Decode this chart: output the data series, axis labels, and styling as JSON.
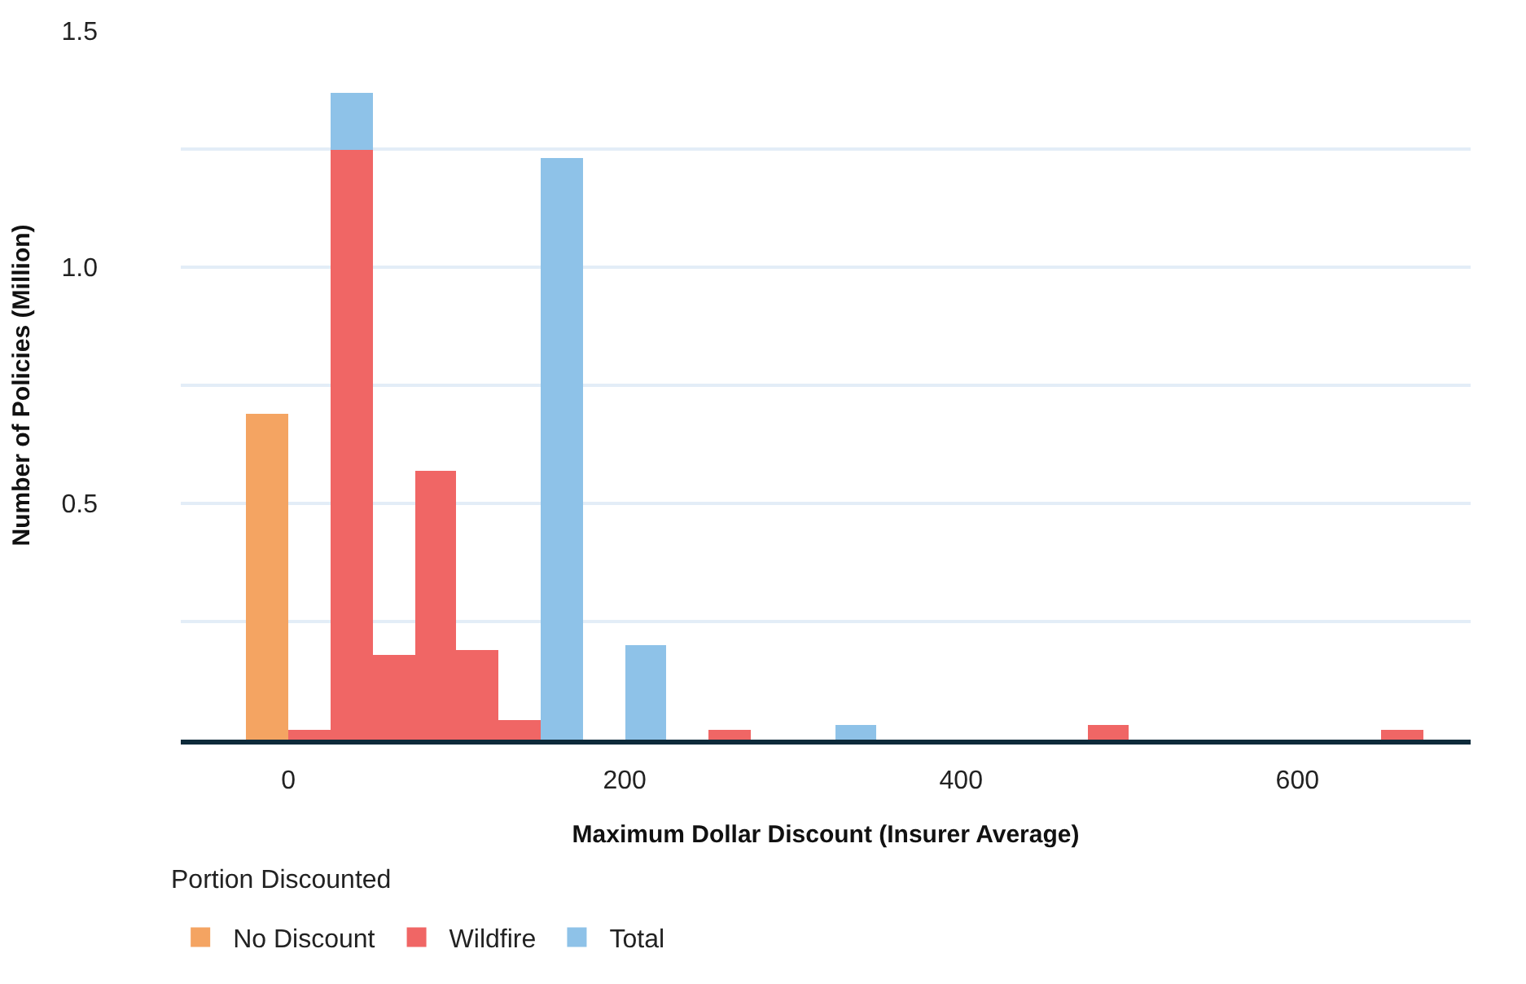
{
  "chart_data": {
    "type": "bar",
    "xlabel": "Maximum Dollar Discount (Insurer Average)",
    "ylabel": "Number of Policies (Million)",
    "legend_title": "Portion Discounted",
    "x": [
      -12.5,
      12.5,
      37.5,
      62.5,
      87.5,
      112.5,
      137.5,
      162.5,
      187.5,
      212.5,
      237.5,
      262.5,
      287.5,
      312.5,
      337.5,
      362.5,
      387.5,
      412.5,
      437.5,
      462.5,
      487.5,
      512.5,
      537.5,
      562.5,
      587.5,
      612.5,
      637.5,
      662.5
    ],
    "stacked": true,
    "series": [
      {
        "name": "No Discount",
        "color": "#f4a462",
        "values": [
          0.69,
          0,
          0,
          0,
          0,
          0,
          0,
          0,
          0,
          0,
          0,
          0,
          0,
          0,
          0,
          0,
          0,
          0,
          0,
          0,
          0,
          0,
          0,
          0,
          0,
          0,
          0,
          0
        ]
      },
      {
        "name": "Wildfire",
        "color": "#f06665",
        "values": [
          0,
          0.02,
          1.25,
          0.18,
          0.57,
          0.19,
          0.04,
          0,
          0,
          0,
          0,
          0.02,
          0,
          0,
          0,
          0,
          0,
          0,
          0,
          0,
          0.03,
          0,
          0,
          0,
          0,
          0,
          0,
          0.02
        ]
      },
      {
        "name": "Total",
        "color": "#8ec2e8",
        "values": [
          0,
          0,
          0.12,
          0,
          0,
          0,
          0,
          1.23,
          0,
          0.2,
          0,
          0,
          0,
          0,
          0.03,
          0,
          0,
          0,
          0,
          0,
          0,
          0,
          0,
          0,
          0,
          0,
          0,
          0
        ]
      }
    ],
    "xlim": [
      -64,
      703
    ],
    "xticks": [
      0,
      200,
      400,
      600
    ],
    "ylim": [
      0,
      1.5
    ],
    "yticks": [
      {
        "value": 0,
        "label": null
      },
      {
        "value": 0.25,
        "label": null
      },
      {
        "value": 0.5,
        "label": "0.5"
      },
      {
        "value": 0.75,
        "label": null
      },
      {
        "value": 1,
        "label": "1.0"
      },
      {
        "value": 1.25,
        "label": null
      },
      {
        "value": 1.5,
        "label": "1.5"
      }
    ],
    "grid": "y",
    "legend": "bottom left"
  }
}
